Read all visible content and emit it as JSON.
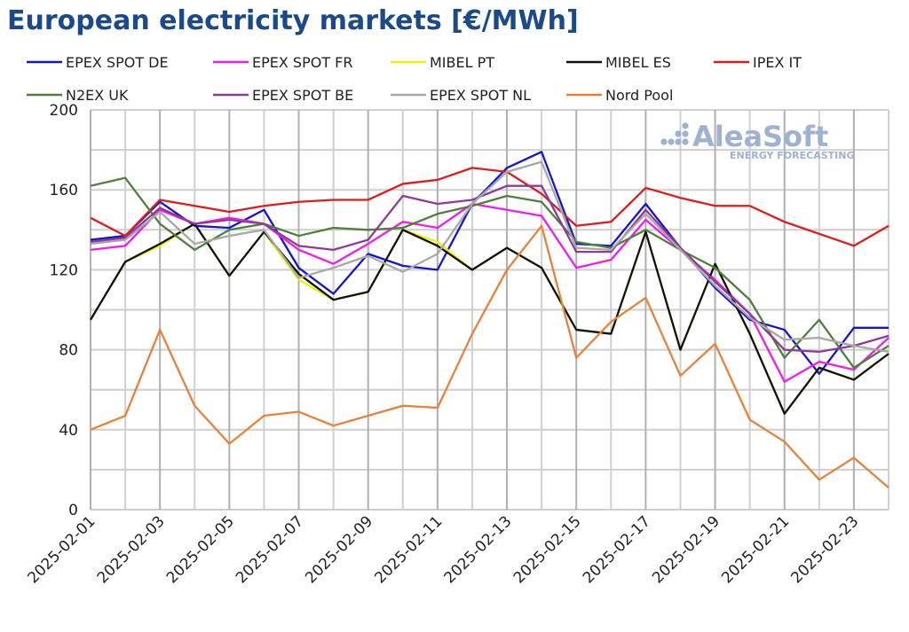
{
  "chart_data": {
    "type": "line",
    "title": "European electricity markets [€/MWh]",
    "x": [
      "2025-02-01",
      "2025-02-02",
      "2025-02-03",
      "2025-02-04",
      "2025-02-05",
      "2025-02-06",
      "2025-02-07",
      "2025-02-08",
      "2025-02-09",
      "2025-02-10",
      "2025-02-11",
      "2025-02-12",
      "2025-02-13",
      "2025-02-14",
      "2025-02-15",
      "2025-02-16",
      "2025-02-17",
      "2025-02-18",
      "2025-02-19",
      "2025-02-20",
      "2025-02-21",
      "2025-02-22",
      "2025-02-23",
      "2025-02-24"
    ],
    "x_tick_labels": [
      "2025-02-01",
      "2025-02-03",
      "2025-02-05",
      "2025-02-07",
      "2025-02-09",
      "2025-02-11",
      "2025-02-13",
      "2025-02-15",
      "2025-02-17",
      "2025-02-19",
      "2025-02-21",
      "2025-02-23"
    ],
    "ylim": [
      0,
      200
    ],
    "y_ticks": [
      0,
      40,
      80,
      120,
      160,
      200
    ],
    "grid": true,
    "legend_position": "top",
    "watermark": "AleaSoft ENERGY FORECASTING",
    "series": [
      {
        "name": "EPEX SPOT DE",
        "color": "#1414d2",
        "values": [
          135,
          137,
          154,
          142,
          141,
          150,
          121,
          108,
          128,
          122,
          120,
          153,
          171,
          179,
          133,
          132,
          153,
          131,
          111,
          95,
          90,
          68,
          91,
          91
        ]
      },
      {
        "name": "EPEX SPOT FR",
        "color": "#ee1cee",
        "values": [
          130,
          132,
          150,
          143,
          146,
          143,
          130,
          123,
          133,
          144,
          141,
          153,
          150,
          147,
          121,
          125,
          145,
          130,
          115,
          98,
          64,
          74,
          70,
          86
        ]
      },
      {
        "name": "MIBEL PT",
        "color": "#f0f000",
        "values": [
          95,
          124,
          132,
          143,
          117,
          139,
          115,
          105,
          109,
          140,
          134,
          120,
          131,
          121,
          90,
          88,
          139,
          80,
          123,
          88,
          48,
          71,
          65,
          78
        ]
      },
      {
        "name": "MIBEL ES",
        "color": "#111111",
        "values": [
          95,
          124,
          133,
          143,
          117,
          139,
          118,
          105,
          109,
          140,
          132,
          120,
          131,
          121,
          90,
          88,
          139,
          80,
          123,
          88,
          48,
          71,
          65,
          78
        ]
      },
      {
        "name": "IPEX IT",
        "color": "#dd1c1c",
        "values": [
          146,
          137,
          155,
          152,
          149,
          152,
          154,
          155,
          155,
          163,
          165,
          171,
          169,
          158,
          142,
          144,
          161,
          156,
          152,
          152,
          144,
          138,
          132,
          142
        ]
      },
      {
        "name": "N2EX UK",
        "color": "#4f7f3a",
        "values": [
          162,
          166,
          143,
          130,
          140,
          143,
          137,
          141,
          140,
          141,
          148,
          152,
          157,
          154,
          134,
          131,
          140,
          130,
          121,
          105,
          76,
          95,
          71,
          82
        ]
      },
      {
        "name": "EPEX SPOT BE",
        "color": "#8e3a97",
        "values": [
          134,
          136,
          151,
          143,
          145,
          143,
          132,
          130,
          135,
          157,
          153,
          155,
          162,
          162,
          129,
          129,
          150,
          131,
          114,
          98,
          80,
          79,
          82,
          87
        ]
      },
      {
        "name": "EPEX SPOT NL",
        "color": "#a8a8a8",
        "values": [
          133,
          135,
          149,
          133,
          137,
          140,
          116,
          121,
          127,
          119,
          128,
          153,
          169,
          174,
          131,
          130,
          148,
          130,
          112,
          96,
          85,
          86,
          82,
          79
        ]
      },
      {
        "name": "Nord Pool",
        "color": "#e8823a",
        "values": [
          40,
          47,
          90,
          52,
          33,
          47,
          49,
          42,
          47,
          52,
          51,
          88,
          120,
          142,
          76,
          94,
          106,
          67,
          83,
          45,
          34,
          15,
          26,
          11
        ]
      }
    ]
  }
}
